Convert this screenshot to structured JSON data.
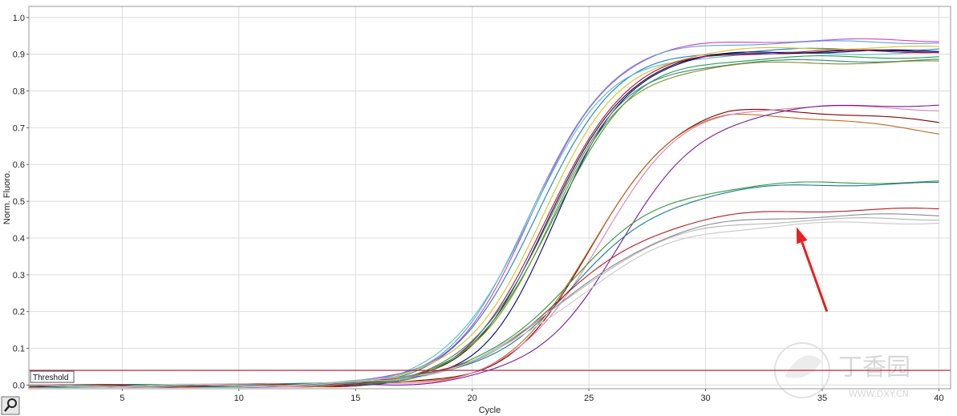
{
  "chart_data": {
    "type": "line",
    "title": "",
    "xlabel": "Cycle",
    "ylabel": "Norm. Fluoro.",
    "xlim": [
      1,
      40.5
    ],
    "ylim": [
      -0.01,
      1.03
    ],
    "x_ticks": [
      5,
      10,
      15,
      20,
      25,
      30,
      35,
      40
    ],
    "y_ticks": [
      0.0,
      0.1,
      0.2,
      0.3,
      0.4,
      0.5,
      0.6,
      0.7,
      0.8,
      0.9,
      1.0
    ],
    "y_tick_labels": [
      "0.0",
      "0.1",
      "0.2",
      "0.3",
      "0.4",
      "0.5",
      "0.6",
      "0.7",
      "0.8",
      "0.9",
      "1.0"
    ],
    "grid": true,
    "threshold": {
      "label": "Threshold",
      "value": 0.04,
      "color": "#b01030"
    },
    "series": [
      {
        "color": "#d23ad2",
        "plateau": 0.94,
        "midpoint": 22.6,
        "slope": 1.7,
        "values": [
          0.005,
          0.005,
          0.005,
          0.005,
          0.005,
          0.005,
          0.005,
          0.005,
          0.005,
          0.005,
          0.005,
          0.005,
          0.005,
          0.005,
          0.006,
          0.007,
          0.011,
          0.02,
          0.04,
          0.075,
          0.14,
          0.24,
          0.37,
          0.5,
          0.62,
          0.71,
          0.78,
          0.83,
          0.86,
          0.88,
          0.9,
          0.91,
          0.92,
          0.925,
          0.93,
          0.93,
          0.935,
          0.935,
          0.94,
          0.94
        ]
      },
      {
        "color": "#5aa3d8",
        "plateau": 0.935,
        "midpoint": 22.5,
        "slope": 1.7
      },
      {
        "color": "#1e7fbf",
        "plateau": 0.915,
        "midpoint": 22.7,
        "slope": 1.7
      },
      {
        "color": "#4dc0c8",
        "plateau": 0.905,
        "midpoint": 22.4,
        "slope": 1.72
      },
      {
        "color": "#e0c020",
        "plateau": 0.92,
        "midpoint": 23.0,
        "slope": 1.75
      },
      {
        "color": "#000080",
        "plateau": 0.91,
        "midpoint": 23.6,
        "slope": 1.6
      },
      {
        "color": "#101010",
        "plateau": 0.91,
        "midpoint": 23.3,
        "slope": 1.7
      },
      {
        "color": "#b01060",
        "plateau": 0.91,
        "midpoint": 23.2,
        "slope": 1.7
      },
      {
        "color": "#2c9a44",
        "plateau": 0.895,
        "midpoint": 23.4,
        "slope": 1.75
      },
      {
        "color": "#2a8a8a",
        "plateau": 0.885,
        "midpoint": 23.2,
        "slope": 1.72
      },
      {
        "color": "#8a8a20",
        "plateau": 0.88,
        "midpoint": 23.3,
        "slope": 1.7
      },
      {
        "color": "#800000",
        "plateau": 0.77,
        "midpoint": 25.2,
        "slope": 1.75,
        "decline": 0.006
      },
      {
        "color": "#c06a20",
        "plateau": 0.76,
        "midpoint": 25.1,
        "slope": 1.75,
        "decline": 0.008
      },
      {
        "color": "#e080b0",
        "plateau": 0.77,
        "midpoint": 25.4,
        "slope": 1.8,
        "decline": 0.002
      },
      {
        "color": "#7a1a9a",
        "plateau": 0.765,
        "midpoint": 26.3,
        "slope": 1.9,
        "decline": 0.0
      },
      {
        "color": "#2f9a3a",
        "plateau": 0.555,
        "midpoint": 24.1,
        "slope": 2.1
      },
      {
        "color": "#1a7a8a",
        "plateau": 0.55,
        "midpoint": 24.4,
        "slope": 2.1
      },
      {
        "color": "#b02020",
        "plateau": 0.48,
        "midpoint": 23.9,
        "slope": 2.2
      },
      {
        "color": "#8a8a8a",
        "plateau": 0.465,
        "midpoint": 24.0,
        "slope": 2.3
      },
      {
        "color": "#b4b4b4",
        "plateau": 0.455,
        "midpoint": 23.9,
        "slope": 2.3
      },
      {
        "color": "#c8c8c8",
        "plateau": 0.445,
        "midpoint": 24.1,
        "slope": 2.35
      }
    ],
    "annotation": {
      "type": "arrow",
      "color": "#e82020",
      "from": [
        35.2,
        0.2
      ],
      "to": [
        33.9,
        0.43
      ]
    }
  },
  "watermark": {
    "text": "丁香园",
    "subtext": "WWW.DXY.CN"
  }
}
